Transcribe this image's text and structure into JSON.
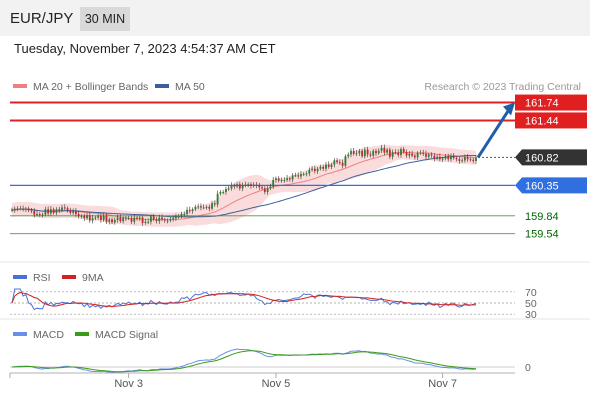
{
  "header": {
    "symbol": "EUR/JPY",
    "timeframe": "30 MIN"
  },
  "timestamp": "Tuesday, November 7, 2023 4:54:37 AM CET",
  "source": "Research © 2023 Trading Central",
  "colors": {
    "up": "#2e7d32",
    "down": "#c62828",
    "resistance": "#e02020",
    "support": "#2f6fe0",
    "target": "#006400",
    "ma50": "#3e5f9e",
    "bollinger": "#f5c0c0",
    "arrow": "#1f5fa8",
    "rsi": "#4a72d6",
    "rsi_ma": "#d42020",
    "macd": "#6a8fe8",
    "macd_signal": "#3a9a1a"
  },
  "chart_data": [
    {
      "type": "candlestick",
      "legend": [
        "MA 20 + Bollinger Bands",
        "MA 50"
      ],
      "x_tick_labels": [
        "Nov 3",
        "Nov 5",
        "Nov 7"
      ],
      "ylim": [
        159.3,
        161.85
      ],
      "levels": [
        {
          "value": 161.74,
          "label": "161.74",
          "kind": "resistance"
        },
        {
          "value": 161.44,
          "label": "161.44",
          "kind": "resistance"
        },
        {
          "value": 160.82,
          "label": "160.82",
          "kind": "last"
        },
        {
          "value": 160.35,
          "label": "160.35",
          "kind": "support"
        },
        {
          "value": 159.84,
          "label": "159.84",
          "kind": "target"
        },
        {
          "value": 159.54,
          "label": "159.54",
          "kind": "target"
        }
      ],
      "close": [
        159.93,
        159.96,
        159.96,
        159.96,
        159.95,
        159.96,
        159.93,
        159.92,
        159.86,
        159.87,
        159.86,
        159.86,
        159.95,
        159.88,
        159.95,
        159.89,
        159.95,
        159.93,
        159.98,
        159.97,
        159.94,
        159.89,
        159.92,
        159.87,
        159.83,
        159.84,
        159.8,
        159.85,
        159.76,
        159.8,
        159.81,
        159.84,
        159.77,
        159.84,
        159.74,
        159.78,
        159.73,
        159.77,
        159.81,
        159.75,
        159.8,
        159.8,
        159.8,
        159.74,
        159.81,
        159.79,
        159.81,
        159.72,
        159.74,
        159.74,
        159.83,
        159.78,
        159.75,
        159.81,
        159.78,
        159.76,
        159.76,
        159.78,
        159.8,
        159.82,
        159.84,
        159.87,
        159.87,
        159.94,
        159.92,
        159.95,
        159.99,
        160.0,
        159.98,
        159.98,
        159.99,
        159.96,
        160.05,
        160.03,
        160.21,
        160.24,
        160.24,
        160.29,
        160.3,
        160.35,
        160.33,
        160.37,
        160.3,
        160.35,
        160.36,
        160.37,
        160.34,
        160.36,
        160.34,
        160.32,
        160.3,
        160.24,
        160.3,
        160.33,
        160.44,
        160.47,
        160.43,
        160.44,
        160.44,
        160.47,
        160.45,
        160.52,
        160.52,
        160.5,
        160.54,
        160.54,
        160.55,
        160.61,
        160.63,
        160.59,
        160.63,
        160.66,
        160.63,
        160.7,
        160.66,
        160.7,
        160.77,
        160.74,
        160.73,
        160.68,
        160.84,
        160.87,
        160.93,
        160.88,
        160.89,
        160.93,
        160.84,
        160.95,
        160.87,
        160.85,
        160.93,
        160.89,
        160.93,
        160.98,
        160.9,
        160.95,
        160.83,
        160.91,
        160.9,
        160.86,
        160.96,
        160.91,
        160.85,
        160.88,
        160.85,
        160.82,
        160.89,
        160.9,
        160.88,
        160.83,
        160.87,
        160.85,
        160.8,
        160.83,
        160.79,
        160.8,
        160.84,
        160.79,
        160.84,
        160.81,
        160.79,
        160.76,
        160.77,
        160.82,
        160.79,
        160.78,
        160.76,
        160.82
      ],
      "rsi": {
        "legend": [
          "RSI",
          "9MA"
        ],
        "levels": [
          70,
          50,
          30
        ],
        "ylim": [
          25,
          75
        ]
      },
      "macd": {
        "legend": [
          "MACD",
          "MACD Signal"
        ],
        "zero_label": "0"
      }
    }
  ]
}
